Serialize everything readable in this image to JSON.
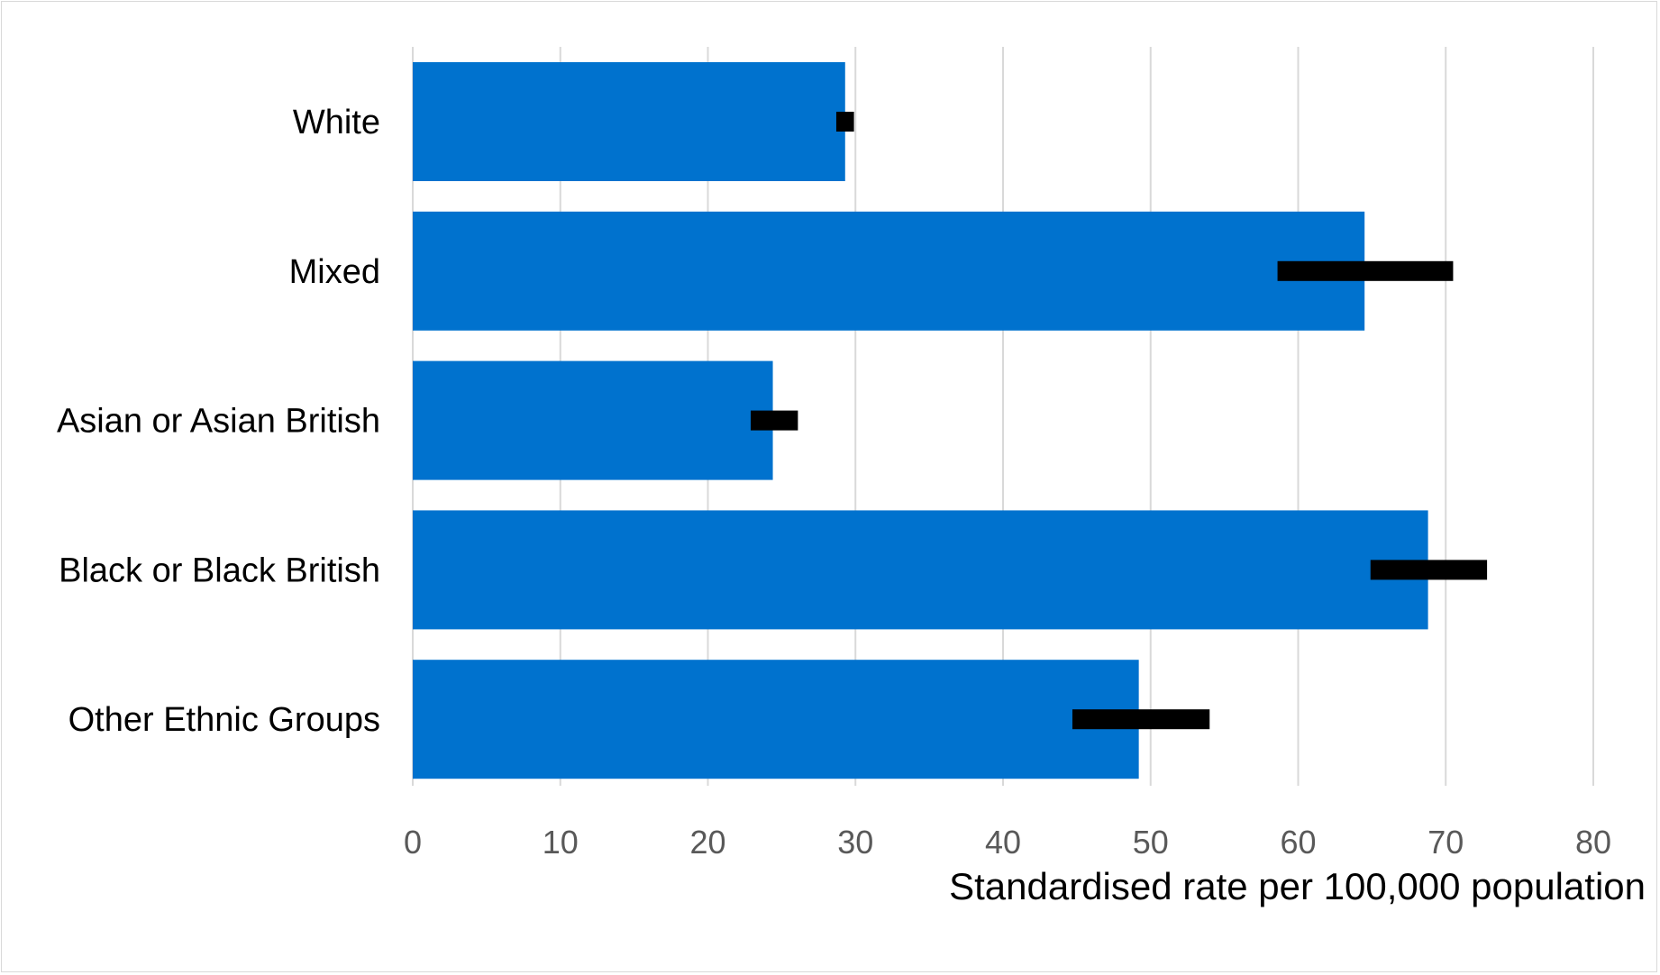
{
  "chart_data": {
    "type": "bar",
    "orientation": "horizontal",
    "categories": [
      "White",
      "Mixed",
      "Asian or Asian British",
      "Black or Black British",
      "Other Ethnic Groups"
    ],
    "values": [
      29.3,
      64.5,
      24.4,
      68.8,
      49.2
    ],
    "error_bars": [
      {
        "low": 28.7,
        "high": 29.9
      },
      {
        "low": 58.6,
        "high": 70.5
      },
      {
        "low": 22.9,
        "high": 26.1
      },
      {
        "low": 64.9,
        "high": 72.8
      },
      {
        "low": 44.7,
        "high": 54.0
      }
    ],
    "title": "",
    "xlabel": "Standardised rate per 100,000 population",
    "ylabel": "",
    "xlim": [
      0,
      80
    ],
    "xticks": [
      "0",
      "10",
      "20",
      "30",
      "40",
      "50",
      "60",
      "70",
      "80"
    ],
    "grid": "vertical",
    "legend": "none",
    "colors": {
      "bar": "#0072CE",
      "error_bar": "#000000",
      "gridline": "#d9d9d9",
      "tick_text": "#595959"
    }
  }
}
